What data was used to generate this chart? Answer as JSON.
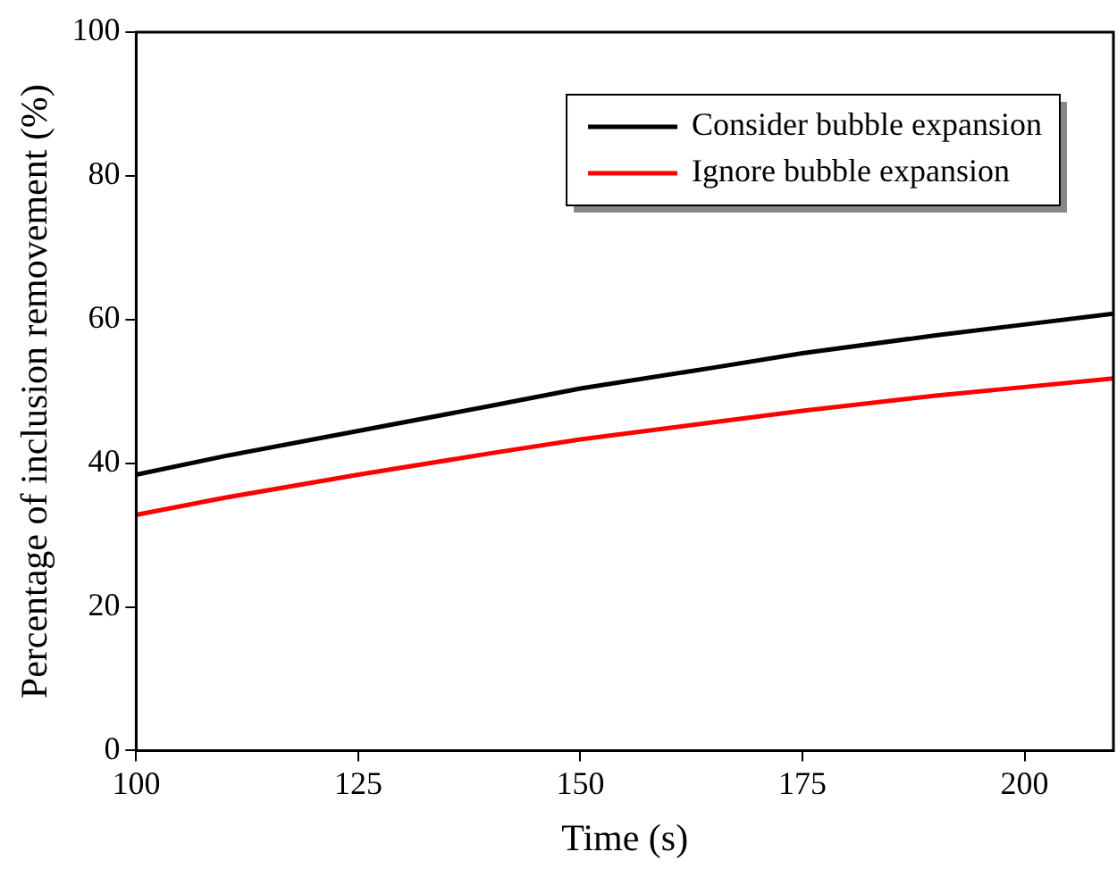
{
  "chart_data": {
    "type": "line",
    "xlabel": "Time (s)",
    "ylabel": "Percentage of inclusion removement (%)",
    "x": [
      100,
      110,
      125,
      140,
      150,
      165,
      175,
      190,
      200,
      210
    ],
    "series": [
      {
        "name": "Consider bubble expansion",
        "color": "#000000",
        "values": [
          38.4,
          41.0,
          44.5,
          48.0,
          50.4,
          53.3,
          55.3,
          57.8,
          59.3,
          60.8
        ]
      },
      {
        "name": "Ignore bubble expansion",
        "color": "#ff0000",
        "values": [
          32.8,
          35.2,
          38.4,
          41.4,
          43.3,
          45.7,
          47.3,
          49.4,
          50.6,
          51.8
        ]
      }
    ],
    "xlim": [
      100,
      210
    ],
    "xticks": [
      100,
      125,
      150,
      175,
      200
    ],
    "ylim": [
      0,
      100
    ],
    "yticks": [
      0,
      20,
      40,
      60,
      80,
      100
    ],
    "grid": false,
    "legend": "top right",
    "marker": "none",
    "line_style": "solid"
  }
}
